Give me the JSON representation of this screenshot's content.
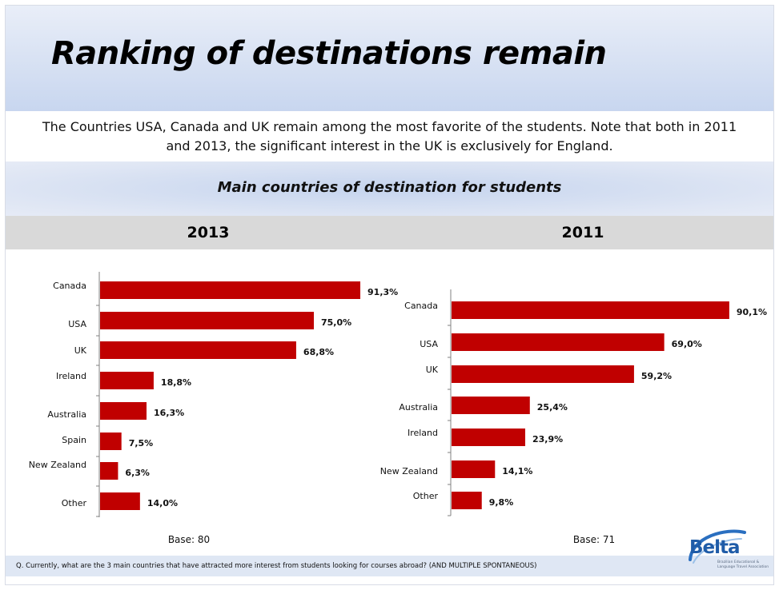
{
  "slide": {
    "title": "Ranking of destinations remain",
    "intro_line1": "The Countries USA, Canada and UK remain among the most favorite of the students. Note that both in 2011",
    "intro_line2": "and 2013, the significant interest in the UK is exclusively for England.",
    "subtitle": "Main countries of destination for students",
    "question": "Q. Currently, what are the 3 main countries that have attracted more interest from students looking for courses abroad? (AND MULTIPLE SPONTANEOUS)"
  },
  "logo": {
    "word": "Belta",
    "sub_line1": "Brazilian Educational &",
    "sub_line2": "Language Travel Association"
  },
  "colors": {
    "bar": "#c00000",
    "axis": "#808080"
  },
  "chart_data": [
    {
      "type": "bar",
      "orientation": "horizontal",
      "title": "2013",
      "categories": [
        "Canada",
        "USA",
        "UK",
        "Ireland",
        "Australia",
        "Spain",
        "New Zealand",
        "Other"
      ],
      "values": [
        91.3,
        75.0,
        68.8,
        18.8,
        16.3,
        7.5,
        6.3,
        14.0
      ],
      "value_labels": [
        "91,3%",
        "75,0%",
        "68,8%",
        "18,8%",
        "16,3%",
        "7,5%",
        "6,3%",
        "14,0%"
      ],
      "unit": "%",
      "base": "Base: 80"
    },
    {
      "type": "bar",
      "orientation": "horizontal",
      "title": "2011",
      "categories": [
        "Canada",
        "USA",
        "UK",
        "Australia",
        "Ireland",
        "New Zealand",
        "Other"
      ],
      "values": [
        90.1,
        69.0,
        59.2,
        25.4,
        23.9,
        14.1,
        9.8
      ],
      "value_labels": [
        "90,1%",
        "69,0%",
        "59,2%",
        "25,4%",
        "23,9%",
        "14,1%",
        "9,8%"
      ],
      "unit": "%",
      "base": "Base: 71"
    }
  ]
}
